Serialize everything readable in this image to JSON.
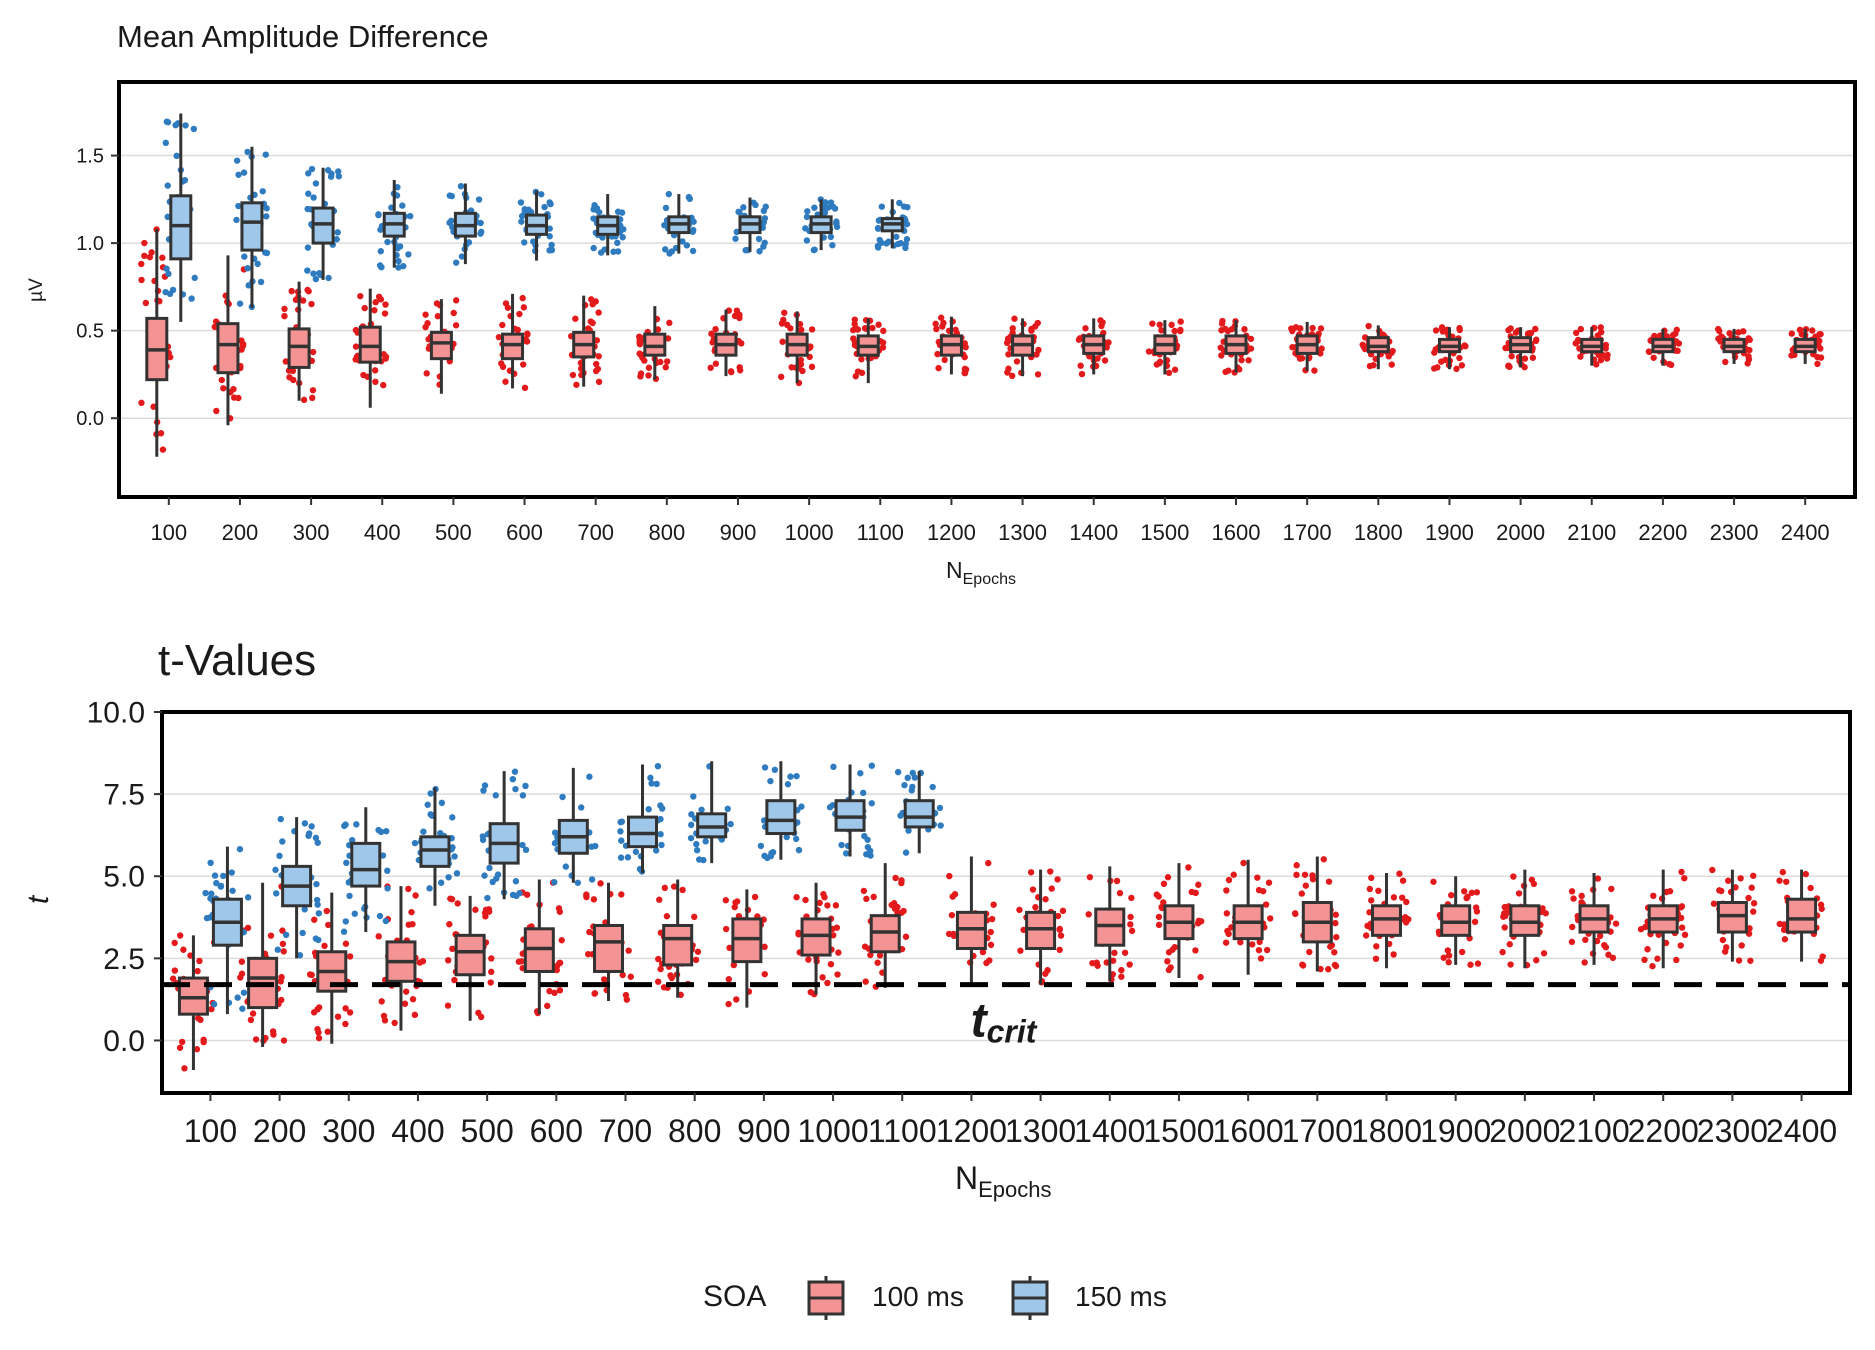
{
  "legend": {
    "title": "SOA",
    "items": [
      {
        "label": "100 ms",
        "fill": "#f39393",
        "point": "#e31a1c"
      },
      {
        "label": "150 ms",
        "fill": "#9ec7ea",
        "point": "#2f7bbf"
      }
    ]
  },
  "chart_data": [
    {
      "type": "boxplot",
      "title": "Mean Amplitude Difference",
      "xlabel_main": "N",
      "xlabel_sub": "Epochs",
      "ylabel": "µV",
      "ylim": [
        -0.45,
        1.92
      ],
      "yticks": [
        0.0,
        0.5,
        1.0,
        1.5
      ],
      "ytick_labels": [
        "0.0",
        "0.5",
        "1.0",
        "1.5"
      ],
      "grid": true,
      "categories": [
        "100",
        "200",
        "300",
        "400",
        "500",
        "600",
        "700",
        "800",
        "900",
        "1000",
        "1100",
        "1200",
        "1300",
        "1400",
        "1500",
        "1600",
        "1700",
        "1800",
        "1900",
        "2000",
        "2100",
        "2200",
        "2300",
        "2400"
      ],
      "series": [
        {
          "name": "100 ms",
          "boxes": [
            {
              "min": -0.22,
              "q1": 0.22,
              "median": 0.39,
              "q3": 0.57,
              "max": 1.08
            },
            {
              "min": -0.04,
              "q1": 0.26,
              "median": 0.42,
              "q3": 0.54,
              "max": 0.93
            },
            {
              "min": 0.1,
              "q1": 0.29,
              "median": 0.41,
              "q3": 0.51,
              "max": 0.78
            },
            {
              "min": 0.06,
              "q1": 0.32,
              "median": 0.41,
              "q3": 0.52,
              "max": 0.74
            },
            {
              "min": 0.14,
              "q1": 0.34,
              "median": 0.43,
              "q3": 0.49,
              "max": 0.68
            },
            {
              "min": 0.17,
              "q1": 0.34,
              "median": 0.42,
              "q3": 0.48,
              "max": 0.71
            },
            {
              "min": 0.18,
              "q1": 0.35,
              "median": 0.42,
              "q3": 0.49,
              "max": 0.7
            },
            {
              "min": 0.22,
              "q1": 0.36,
              "median": 0.41,
              "q3": 0.48,
              "max": 0.64
            },
            {
              "min": 0.24,
              "q1": 0.36,
              "median": 0.42,
              "q3": 0.48,
              "max": 0.62
            },
            {
              "min": 0.2,
              "q1": 0.36,
              "median": 0.42,
              "q3": 0.48,
              "max": 0.61
            },
            {
              "min": 0.2,
              "q1": 0.36,
              "median": 0.41,
              "q3": 0.47,
              "max": 0.57
            },
            {
              "min": 0.25,
              "q1": 0.36,
              "median": 0.42,
              "q3": 0.47,
              "max": 0.58
            },
            {
              "min": 0.24,
              "q1": 0.36,
              "median": 0.42,
              "q3": 0.47,
              "max": 0.57
            },
            {
              "min": 0.25,
              "q1": 0.37,
              "median": 0.42,
              "q3": 0.47,
              "max": 0.57
            },
            {
              "min": 0.25,
              "q1": 0.37,
              "median": 0.42,
              "q3": 0.47,
              "max": 0.56
            },
            {
              "min": 0.26,
              "q1": 0.37,
              "median": 0.42,
              "q3": 0.47,
              "max": 0.56
            },
            {
              "min": 0.27,
              "q1": 0.37,
              "median": 0.42,
              "q3": 0.47,
              "max": 0.55
            },
            {
              "min": 0.28,
              "q1": 0.38,
              "median": 0.41,
              "q3": 0.46,
              "max": 0.53
            },
            {
              "min": 0.28,
              "q1": 0.38,
              "median": 0.41,
              "q3": 0.45,
              "max": 0.52
            },
            {
              "min": 0.29,
              "q1": 0.38,
              "median": 0.42,
              "q3": 0.46,
              "max": 0.52
            },
            {
              "min": 0.3,
              "q1": 0.38,
              "median": 0.41,
              "q3": 0.45,
              "max": 0.52
            },
            {
              "min": 0.3,
              "q1": 0.38,
              "median": 0.41,
              "q3": 0.45,
              "max": 0.51
            },
            {
              "min": 0.31,
              "q1": 0.38,
              "median": 0.41,
              "q3": 0.45,
              "max": 0.51
            },
            {
              "min": 0.31,
              "q1": 0.38,
              "median": 0.41,
              "q3": 0.45,
              "max": 0.51
            }
          ]
        },
        {
          "name": "150 ms",
          "boxes": [
            {
              "min": 0.55,
              "q1": 0.91,
              "median": 1.1,
              "q3": 1.27,
              "max": 1.74
            },
            {
              "min": 0.63,
              "q1": 0.96,
              "median": 1.12,
              "q3": 1.23,
              "max": 1.55
            },
            {
              "min": 0.79,
              "q1": 1.0,
              "median": 1.11,
              "q3": 1.2,
              "max": 1.43
            },
            {
              "min": 0.86,
              "q1": 1.04,
              "median": 1.11,
              "q3": 1.17,
              "max": 1.36
            },
            {
              "min": 0.88,
              "q1": 1.04,
              "median": 1.1,
              "q3": 1.17,
              "max": 1.34
            },
            {
              "min": 0.9,
              "q1": 1.05,
              "median": 1.1,
              "q3": 1.16,
              "max": 1.3
            },
            {
              "min": 0.93,
              "q1": 1.05,
              "median": 1.1,
              "q3": 1.15,
              "max": 1.28
            },
            {
              "min": 0.94,
              "q1": 1.06,
              "median": 1.11,
              "q3": 1.15,
              "max": 1.28
            },
            {
              "min": 0.95,
              "q1": 1.06,
              "median": 1.11,
              "q3": 1.15,
              "max": 1.26
            },
            {
              "min": 0.96,
              "q1": 1.06,
              "median": 1.11,
              "q3": 1.15,
              "max": 1.25
            },
            {
              "min": 0.97,
              "q1": 1.07,
              "median": 1.11,
              "q3": 1.14,
              "max": 1.25
            }
          ]
        }
      ]
    },
    {
      "type": "boxplot",
      "title": "t-Values",
      "xlabel_main": "N",
      "xlabel_sub": "Epochs",
      "ylabel": "t",
      "ylim": [
        -1.6,
        10.0
      ],
      "yticks": [
        0.0,
        2.5,
        5.0,
        7.5,
        10.0
      ],
      "ytick_labels": [
        "0.0",
        "2.5",
        "5.0",
        "7.5",
        "10.0"
      ],
      "grid": true,
      "reference_line": {
        "y": 1.7,
        "label_main": "t",
        "label_sub": "crit",
        "label_x": 1300
      },
      "categories": [
        "100",
        "200",
        "300",
        "400",
        "500",
        "600",
        "700",
        "800",
        "900",
        "1000",
        "1100",
        "1200",
        "1300",
        "1400",
        "1500",
        "1600",
        "1700",
        "1800",
        "1900",
        "2000",
        "2100",
        "2200",
        "2300",
        "2400"
      ],
      "series": [
        {
          "name": "100 ms",
          "boxes": [
            {
              "min": -0.9,
              "q1": 0.8,
              "median": 1.3,
              "q3": 1.9,
              "max": 3.2
            },
            {
              "min": -0.2,
              "q1": 1.0,
              "median": 1.9,
              "q3": 2.5,
              "max": 4.8
            },
            {
              "min": -0.1,
              "q1": 1.5,
              "median": 2.1,
              "q3": 2.7,
              "max": 4.5
            },
            {
              "min": 0.3,
              "q1": 1.8,
              "median": 2.4,
              "q3": 3.0,
              "max": 4.7
            },
            {
              "min": 0.6,
              "q1": 2.0,
              "median": 2.7,
              "q3": 3.2,
              "max": 4.4
            },
            {
              "min": 0.8,
              "q1": 2.1,
              "median": 2.8,
              "q3": 3.4,
              "max": 4.9
            },
            {
              "min": 1.2,
              "q1": 2.1,
              "median": 3.0,
              "q3": 3.5,
              "max": 4.8
            },
            {
              "min": 1.3,
              "q1": 2.3,
              "median": 3.1,
              "q3": 3.5,
              "max": 4.9
            },
            {
              "min": 1.0,
              "q1": 2.4,
              "median": 3.1,
              "q3": 3.7,
              "max": 4.6
            },
            {
              "min": 1.4,
              "q1": 2.6,
              "median": 3.2,
              "q3": 3.7,
              "max": 4.8
            },
            {
              "min": 1.6,
              "q1": 2.7,
              "median": 3.3,
              "q3": 3.8,
              "max": 5.4
            },
            {
              "min": 1.7,
              "q1": 2.8,
              "median": 3.4,
              "q3": 3.9,
              "max": 5.6
            },
            {
              "min": 1.7,
              "q1": 2.8,
              "median": 3.4,
              "q3": 3.9,
              "max": 5.2
            },
            {
              "min": 1.8,
              "q1": 2.9,
              "median": 3.5,
              "q3": 4.0,
              "max": 5.3
            },
            {
              "min": 1.9,
              "q1": 3.1,
              "median": 3.6,
              "q3": 4.1,
              "max": 5.4
            },
            {
              "min": 2.0,
              "q1": 3.1,
              "median": 3.6,
              "q3": 4.1,
              "max": 5.5
            },
            {
              "min": 2.1,
              "q1": 3.0,
              "median": 3.6,
              "q3": 4.2,
              "max": 5.6
            },
            {
              "min": 2.2,
              "q1": 3.2,
              "median": 3.7,
              "q3": 4.1,
              "max": 5.1
            },
            {
              "min": 2.3,
              "q1": 3.2,
              "median": 3.6,
              "q3": 4.1,
              "max": 5.0
            },
            {
              "min": 2.2,
              "q1": 3.2,
              "median": 3.6,
              "q3": 4.1,
              "max": 5.2
            },
            {
              "min": 2.3,
              "q1": 3.3,
              "median": 3.7,
              "q3": 4.1,
              "max": 5.1
            },
            {
              "min": 2.2,
              "q1": 3.3,
              "median": 3.7,
              "q3": 4.1,
              "max": 5.2
            },
            {
              "min": 2.4,
              "q1": 3.3,
              "median": 3.8,
              "q3": 4.2,
              "max": 5.2
            },
            {
              "min": 2.4,
              "q1": 3.3,
              "median": 3.7,
              "q3": 4.3,
              "max": 5.2
            }
          ]
        },
        {
          "name": "150 ms",
          "boxes": [
            {
              "min": 0.8,
              "q1": 2.9,
              "median": 3.6,
              "q3": 4.3,
              "max": 5.9
            },
            {
              "min": 2.5,
              "q1": 4.1,
              "median": 4.7,
              "q3": 5.3,
              "max": 6.8
            },
            {
              "min": 3.3,
              "q1": 4.7,
              "median": 5.2,
              "q3": 6.0,
              "max": 7.1
            },
            {
              "min": 4.1,
              "q1": 5.3,
              "median": 5.8,
              "q3": 6.2,
              "max": 7.7
            },
            {
              "min": 4.3,
              "q1": 5.4,
              "median": 6.0,
              "q3": 6.6,
              "max": 8.2
            },
            {
              "min": 4.8,
              "q1": 5.7,
              "median": 6.2,
              "q3": 6.7,
              "max": 8.3
            },
            {
              "min": 5.1,
              "q1": 5.9,
              "median": 6.3,
              "q3": 6.8,
              "max": 8.4
            },
            {
              "min": 5.4,
              "q1": 6.2,
              "median": 6.5,
              "q3": 6.9,
              "max": 8.5
            },
            {
              "min": 5.5,
              "q1": 6.3,
              "median": 6.7,
              "q3": 7.3,
              "max": 8.5
            },
            {
              "min": 5.6,
              "q1": 6.4,
              "median": 6.8,
              "q3": 7.3,
              "max": 8.4
            },
            {
              "min": 5.7,
              "q1": 6.5,
              "median": 6.8,
              "q3": 7.3,
              "max": 8.2
            }
          ]
        }
      ]
    }
  ]
}
